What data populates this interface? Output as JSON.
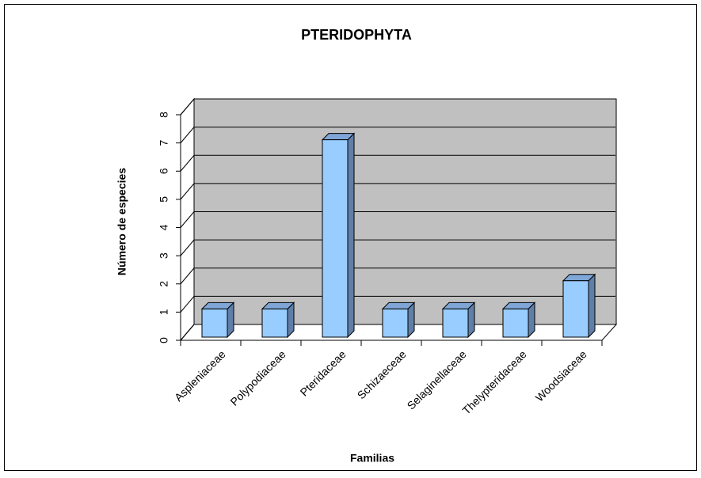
{
  "chart_data": {
    "type": "bar",
    "title": "PTERIDOPHYTA",
    "categories": [
      "Aspleniaceae",
      "Polypodiaceae",
      "Pteridaceae",
      "Schizaeceae",
      "Selaginellaceae",
      "Thelypteridaceae",
      "Woodsiaceae"
    ],
    "values": [
      1,
      1,
      7,
      1,
      1,
      1,
      2
    ],
    "color": "#99ccff",
    "ylim": [
      0,
      8
    ],
    "yticks": [
      0,
      1,
      2,
      3,
      4,
      5,
      6,
      7,
      8
    ],
    "grid": true,
    "xlabel": "Familias",
    "ylabel": "Número de especies"
  }
}
